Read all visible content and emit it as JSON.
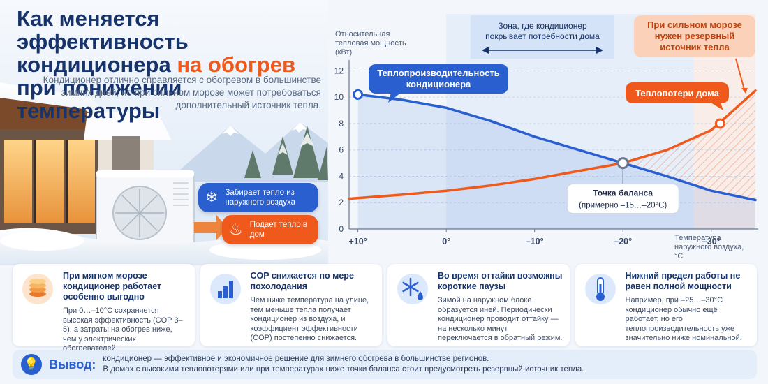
{
  "header": {
    "title_line1": "Как меняется эффективность",
    "title_line2_pre": "кондиционера ",
    "title_line2_accent": "на обогрев",
    "title_line3": "при понижении температуры",
    "subtitle": "Кондиционер отлично справляется с обогревом в большинстве зимних дней, но при сильном морозе может потребоваться дополнительный источник тепла."
  },
  "illustration": {
    "chip_outdoor": "Забирает тепло из наружного воздуха",
    "chip_indoor": "Подает тепло в дом"
  },
  "colors": {
    "blue": "#2a5fcf",
    "orange": "#ef5a1c",
    "navy": "#16336b"
  },
  "chart_data": {
    "type": "line",
    "ylabel": "Относительная тепловая мощность (кВт)",
    "xlabel": "Температура наружного воздуха, °C",
    "x_ticks": [
      "+10°",
      "0°",
      "–10°",
      "–20°",
      "–30°"
    ],
    "x_tick_values": [
      10,
      0,
      -10,
      -20,
      -30
    ],
    "y_ticks": [
      "0",
      "2",
      "4",
      "6",
      "8",
      "10",
      "12"
    ],
    "y_tick_values": [
      0,
      2,
      4,
      6,
      8,
      10,
      12
    ],
    "xlim": [
      11,
      -35
    ],
    "ylim": [
      0,
      12.5
    ],
    "x_axis_reversed": true,
    "grid": true,
    "series": [
      {
        "name": "Теплопроизводительность кондиционера",
        "color": "#2a5fcf",
        "x": [
          10,
          5,
          0,
          -5,
          -10,
          -15,
          -20,
          -25,
          -30,
          -35
        ],
        "y": [
          10.2,
          9.8,
          9.2,
          8.2,
          7.0,
          6.0,
          5.0,
          4.0,
          2.9,
          2.2
        ]
      },
      {
        "name": "Теплопотери дома",
        "color": "#ef5a1c",
        "x": [
          11,
          5,
          0,
          -5,
          -10,
          -15,
          -20,
          -25,
          -30,
          -35
        ],
        "y": [
          2.3,
          2.6,
          2.9,
          3.3,
          3.8,
          4.4,
          5.0,
          6.0,
          7.5,
          10.5
        ]
      }
    ],
    "annotations": {
      "blue_label": "Теплопроизводительность кондиционера",
      "orange_label": "Теплопотери дома",
      "zone_label": "Зона, где кондиционер покрывает потребности дома",
      "cold_label": "При сильном морозе нужен резервный источник тепла",
      "balance_title": "Точка баланса",
      "balance_sub": "(примерно –15…–20°C)"
    },
    "balance_point": {
      "x": -20,
      "y": 5.0
    }
  },
  "cards": [
    {
      "icon": "coins-icon",
      "title": "При мягком морозе кондиционер работает особенно выгодно",
      "text": "При 0…–10°C сохраняется высокая эффективность (COP 3–5), а затраты на обогрев ниже, чем у электрических обогревателей."
    },
    {
      "icon": "bar-chart-icon",
      "title": "COP снижается по мере похолодания",
      "text": "Чем ниже температура на улице, тем меньше тепла получает кондиционер из воздуха, и коэффициент эффективности (COP) постепенно снижается."
    },
    {
      "icon": "snowflake-drop-icon",
      "title": "Во время оттайки возможны короткие паузы",
      "text": "Зимой на наружном блоке образуется иней. Периодически кондиционер проводит оттайку — на несколько минут переключается в обратный режим."
    },
    {
      "icon": "thermometer-icon",
      "title": "Нижний предел работы не равен полной мощности",
      "text": "Например, при –25…–30°C кондиционер обычно ещё работает, но его теплопроизводительность уже значительно ниже номинальной."
    }
  ],
  "conclusion": {
    "label": "Вывод:",
    "line1": "кондиционер — эффективное и экономичное решение для зимнего обогрева в большинстве регионов.",
    "line2": "В домах с высокими теплопотерями или при температурах ниже точки баланса стоит предусмотреть резервный источник тепла."
  }
}
